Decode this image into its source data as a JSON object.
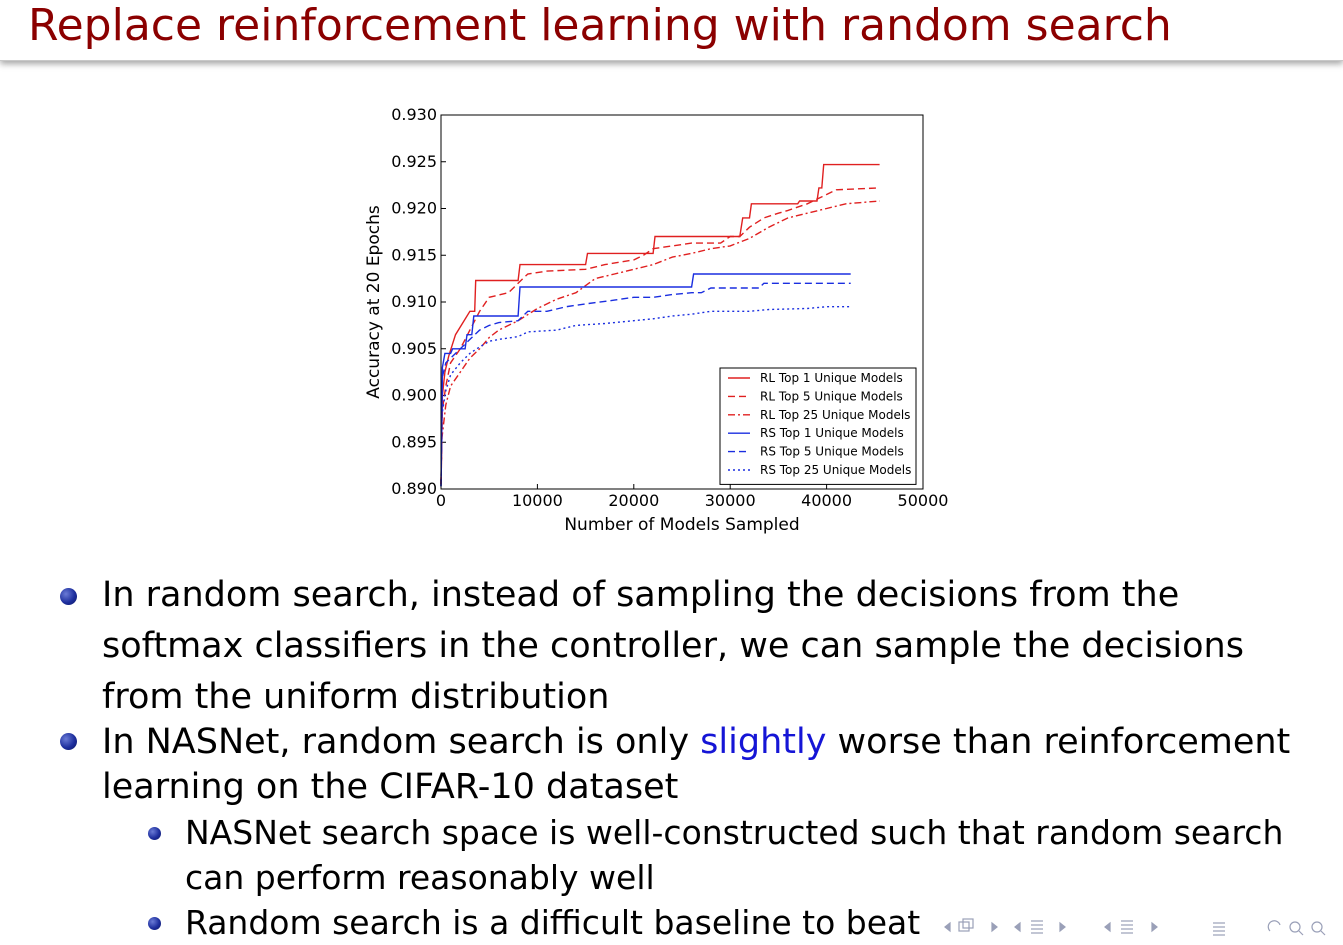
{
  "slide": {
    "title": "Replace reinforcement learning with random search"
  },
  "bullets": {
    "b1": "In random search, instead of sampling the decisions from the softmax classifiers in the controller, we can sample the decisions from the uniform distribution",
    "b2_pre": "In NASNet, random search is only ",
    "b2_highlight": "slightly",
    "b2_post": " worse than reinforcement learning on the CIFAR-10 dataset",
    "s1": "NASNet search space is well-constructed such that random search can perform reasonably well",
    "s2": "Random search is a difficult baseline to beat"
  },
  "colors": {
    "title": "#8b0000",
    "highlight": "#1515d6",
    "rl": "#e02020",
    "rs": "#1a2ee0",
    "bullet": "#1e2f9e"
  },
  "nav": {
    "icons": [
      "arrow-left-icon",
      "frame-icon",
      "arrow-right-icon",
      "arrow-left-icon",
      "section-icon",
      "arrow-right-icon",
      "arrow-left-icon",
      "subsection-icon",
      "arrow-right-icon",
      "align-icon",
      "search-icon"
    ]
  },
  "chart_data": {
    "type": "line",
    "title": "",
    "xlabel": "Number of Models Sampled",
    "ylabel": "Accuracy at 20 Epochs",
    "xlim": [
      0,
      50000
    ],
    "ylim": [
      0.89,
      0.93
    ],
    "xticks": [
      0,
      10000,
      20000,
      30000,
      40000,
      50000
    ],
    "yticks": [
      "0.890",
      "0.895",
      "0.900",
      "0.905",
      "0.910",
      "0.915",
      "0.920",
      "0.925",
      "0.930"
    ],
    "grid": false,
    "legend_position": "bottom-right",
    "series": [
      {
        "name": "RL Top 1 Unique Models",
        "color": "#e02020",
        "dash": "solid",
        "points": [
          [
            0,
            0.8905
          ],
          [
            150,
            0.9
          ],
          [
            400,
            0.9025
          ],
          [
            800,
            0.9042
          ],
          [
            1500,
            0.9065
          ],
          [
            3000,
            0.909
          ],
          [
            3500,
            0.909
          ],
          [
            3600,
            0.9123
          ],
          [
            8000,
            0.9123
          ],
          [
            8200,
            0.914
          ],
          [
            15000,
            0.914
          ],
          [
            15200,
            0.9152
          ],
          [
            22000,
            0.9152
          ],
          [
            22200,
            0.917
          ],
          [
            31000,
            0.917
          ],
          [
            31300,
            0.919
          ],
          [
            32000,
            0.919
          ],
          [
            32200,
            0.9205
          ],
          [
            37000,
            0.9205
          ],
          [
            37200,
            0.9208
          ],
          [
            39000,
            0.9208
          ],
          [
            39200,
            0.9222
          ],
          [
            39500,
            0.9222
          ],
          [
            39700,
            0.9247
          ],
          [
            45500,
            0.9247
          ]
        ]
      },
      {
        "name": "RL Top 5 Unique Models",
        "color": "#e02020",
        "dash": "dashed",
        "points": [
          [
            0,
            0.8905
          ],
          [
            150,
            0.8985
          ],
          [
            500,
            0.901
          ],
          [
            1000,
            0.9035
          ],
          [
            2000,
            0.905
          ],
          [
            3000,
            0.907
          ],
          [
            4000,
            0.909
          ],
          [
            5000,
            0.9105
          ],
          [
            7000,
            0.911
          ],
          [
            8500,
            0.9125
          ],
          [
            9000,
            0.913
          ],
          [
            11000,
            0.9133
          ],
          [
            15000,
            0.9135
          ],
          [
            17000,
            0.914
          ],
          [
            20000,
            0.9145
          ],
          [
            21000,
            0.915
          ],
          [
            22000,
            0.9157
          ],
          [
            24000,
            0.916
          ],
          [
            26000,
            0.9163
          ],
          [
            29000,
            0.9163
          ],
          [
            30000,
            0.917
          ],
          [
            31000,
            0.917
          ],
          [
            32000,
            0.918
          ],
          [
            33500,
            0.919
          ],
          [
            35000,
            0.9195
          ],
          [
            36000,
            0.9198
          ],
          [
            38000,
            0.9205
          ],
          [
            39000,
            0.921
          ],
          [
            40000,
            0.9215
          ],
          [
            41000,
            0.922
          ],
          [
            45500,
            0.9222
          ]
        ]
      },
      {
        "name": "RL Top 25 Unique Models",
        "color": "#e02020",
        "dash": "dashdot",
        "points": [
          [
            0,
            0.8905
          ],
          [
            100,
            0.8955
          ],
          [
            500,
            0.899
          ],
          [
            1000,
            0.901
          ],
          [
            2000,
            0.9025
          ],
          [
            3000,
            0.904
          ],
          [
            4000,
            0.905
          ],
          [
            5000,
            0.9062
          ],
          [
            6000,
            0.907
          ],
          [
            8000,
            0.908
          ],
          [
            10000,
            0.9093
          ],
          [
            12000,
            0.9103
          ],
          [
            14000,
            0.911
          ],
          [
            16000,
            0.9125
          ],
          [
            18000,
            0.913
          ],
          [
            20000,
            0.9135
          ],
          [
            22000,
            0.914
          ],
          [
            24000,
            0.9148
          ],
          [
            26000,
            0.9152
          ],
          [
            28000,
            0.9157
          ],
          [
            30000,
            0.916
          ],
          [
            32000,
            0.9168
          ],
          [
            34000,
            0.918
          ],
          [
            36000,
            0.919
          ],
          [
            38000,
            0.9195
          ],
          [
            40000,
            0.92
          ],
          [
            42000,
            0.9205
          ],
          [
            45500,
            0.9208
          ]
        ]
      },
      {
        "name": "RS Top 1 Unique Models",
        "color": "#1a2ee0",
        "dash": "solid",
        "points": [
          [
            0,
            0.8903
          ],
          [
            150,
            0.903
          ],
          [
            400,
            0.9045
          ],
          [
            1000,
            0.9045
          ],
          [
            1200,
            0.905
          ],
          [
            2500,
            0.905
          ],
          [
            2700,
            0.9065
          ],
          [
            3200,
            0.9065
          ],
          [
            3400,
            0.9085
          ],
          [
            8000,
            0.9085
          ],
          [
            8200,
            0.9116
          ],
          [
            26000,
            0.9116
          ],
          [
            26200,
            0.913
          ],
          [
            42500,
            0.913
          ]
        ]
      },
      {
        "name": "RS Top 5 Unique Models",
        "color": "#1a2ee0",
        "dash": "dashed",
        "points": [
          [
            0,
            0.8903
          ],
          [
            150,
            0.902
          ],
          [
            500,
            0.9035
          ],
          [
            1000,
            0.904
          ],
          [
            2000,
            0.905
          ],
          [
            3000,
            0.906
          ],
          [
            4000,
            0.907
          ],
          [
            5000,
            0.9075
          ],
          [
            6000,
            0.9078
          ],
          [
            8000,
            0.908
          ],
          [
            9000,
            0.909
          ],
          [
            11000,
            0.909
          ],
          [
            13000,
            0.9095
          ],
          [
            15000,
            0.9098
          ],
          [
            18000,
            0.9102
          ],
          [
            20000,
            0.9105
          ],
          [
            22000,
            0.9105
          ],
          [
            24000,
            0.9108
          ],
          [
            26000,
            0.911
          ],
          [
            27000,
            0.911
          ],
          [
            28000,
            0.9115
          ],
          [
            33000,
            0.9115
          ],
          [
            33500,
            0.912
          ],
          [
            42500,
            0.912
          ]
        ]
      },
      {
        "name": "RS Top 25 Unique Models",
        "color": "#1a2ee0",
        "dash": "dotted",
        "points": [
          [
            0,
            0.8903
          ],
          [
            100,
            0.898
          ],
          [
            500,
            0.9005
          ],
          [
            1000,
            0.9022
          ],
          [
            2000,
            0.9035
          ],
          [
            3000,
            0.9045
          ],
          [
            4000,
            0.9052
          ],
          [
            5000,
            0.9058
          ],
          [
            6000,
            0.906
          ],
          [
            8000,
            0.9063
          ],
          [
            9000,
            0.9068
          ],
          [
            12000,
            0.907
          ],
          [
            14000,
            0.9075
          ],
          [
            17000,
            0.9077
          ],
          [
            20000,
            0.908
          ],
          [
            22000,
            0.9082
          ],
          [
            24000,
            0.9085
          ],
          [
            26000,
            0.9087
          ],
          [
            28000,
            0.909
          ],
          [
            32000,
            0.909
          ],
          [
            34000,
            0.9092
          ],
          [
            38000,
            0.9093
          ],
          [
            40000,
            0.9095
          ],
          [
            42500,
            0.9095
          ]
        ]
      }
    ]
  }
}
